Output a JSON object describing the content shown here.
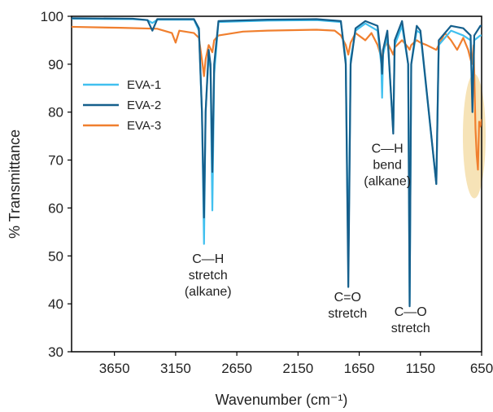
{
  "chart_data": {
    "type": "line",
    "xlabel": "Wavenumber (cm⁻¹)",
    "ylabel": "% Transmittance",
    "xlim": [
      4000,
      650
    ],
    "ylim": [
      30,
      100
    ],
    "x_reversed": true,
    "x_ticks": [
      3650,
      3150,
      2650,
      2150,
      1650,
      1150,
      650
    ],
    "y_ticks": [
      30,
      40,
      50,
      60,
      70,
      80,
      90,
      100
    ],
    "grid": false,
    "legend_position": "top-left",
    "series": [
      {
        "name": "EVA-1",
        "color": "#41c0ef",
        "points": [
          [
            4000,
            99.5
          ],
          [
            3500,
            99.4
          ],
          [
            3380,
            99.2
          ],
          [
            3340,
            98.6
          ],
          [
            3300,
            99.3
          ],
          [
            3000,
            99.3
          ],
          [
            2960,
            97.0
          ],
          [
            2935,
            80.0
          ],
          [
            2918,
            52.5
          ],
          [
            2905,
            80.0
          ],
          [
            2880,
            92.0
          ],
          [
            2865,
            89.0
          ],
          [
            2850,
            59.5
          ],
          [
            2835,
            88.0
          ],
          [
            2800,
            98.8
          ],
          [
            2400,
            99.1
          ],
          [
            2000,
            99.2
          ],
          [
            1800,
            98.8
          ],
          [
            1760,
            91.0
          ],
          [
            1739,
            48.0
          ],
          [
            1720,
            91.0
          ],
          [
            1680,
            97.0
          ],
          [
            1600,
            98.5
          ],
          [
            1500,
            97.0
          ],
          [
            1470,
            90.0
          ],
          [
            1463,
            83.0
          ],
          [
            1455,
            92.0
          ],
          [
            1420,
            96.0
          ],
          [
            1372,
            76.0
          ],
          [
            1360,
            94.0
          ],
          [
            1300,
            98.0
          ],
          [
            1250,
            90.0
          ],
          [
            1238,
            40.0
          ],
          [
            1225,
            90.0
          ],
          [
            1180,
            97.0
          ],
          [
            1150,
            96.5
          ],
          [
            1020,
            65.0
          ],
          [
            1000,
            94.0
          ],
          [
            900,
            97.0
          ],
          [
            800,
            96.0
          ],
          [
            740,
            95.0
          ],
          [
            725,
            82.0
          ],
          [
            710,
            95.0
          ],
          [
            660,
            96.0
          ],
          [
            650,
            96.0
          ]
        ]
      },
      {
        "name": "EVA-2",
        "color": "#155f8c",
        "points": [
          [
            4000,
            99.6
          ],
          [
            3500,
            99.5
          ],
          [
            3380,
            99.2
          ],
          [
            3340,
            97.0
          ],
          [
            3300,
            99.4
          ],
          [
            3000,
            99.4
          ],
          [
            2960,
            97.5
          ],
          [
            2935,
            80.0
          ],
          [
            2918,
            58.0
          ],
          [
            2905,
            80.0
          ],
          [
            2880,
            93.0
          ],
          [
            2865,
            90.0
          ],
          [
            2850,
            67.5
          ],
          [
            2835,
            90.0
          ],
          [
            2800,
            99.0
          ],
          [
            2400,
            99.3
          ],
          [
            2000,
            99.4
          ],
          [
            1800,
            99.0
          ],
          [
            1760,
            90.0
          ],
          [
            1739,
            43.5
          ],
          [
            1720,
            90.0
          ],
          [
            1680,
            97.5
          ],
          [
            1600,
            99.0
          ],
          [
            1500,
            98.0
          ],
          [
            1470,
            91.0
          ],
          [
            1463,
            88.0
          ],
          [
            1455,
            93.0
          ],
          [
            1420,
            97.0
          ],
          [
            1372,
            75.5
          ],
          [
            1360,
            95.0
          ],
          [
            1300,
            99.0
          ],
          [
            1250,
            90.0
          ],
          [
            1238,
            39.5
          ],
          [
            1225,
            90.0
          ],
          [
            1180,
            98.0
          ],
          [
            1150,
            97.0
          ],
          [
            1020,
            65.0
          ],
          [
            1000,
            95.0
          ],
          [
            900,
            98.0
          ],
          [
            800,
            97.5
          ],
          [
            740,
            96.0
          ],
          [
            725,
            80.0
          ],
          [
            710,
            96.0
          ],
          [
            660,
            98.0
          ],
          [
            650,
            98.0
          ]
        ]
      },
      {
        "name": "EVA-3",
        "color": "#f07f2e",
        "points": [
          [
            4000,
            97.8
          ],
          [
            3600,
            97.6
          ],
          [
            3300,
            97.4
          ],
          [
            3180,
            96.5
          ],
          [
            3150,
            94.5
          ],
          [
            3120,
            97.0
          ],
          [
            3000,
            96.5
          ],
          [
            2960,
            95.5
          ],
          [
            2930,
            90.0
          ],
          [
            2918,
            87.5
          ],
          [
            2905,
            91.0
          ],
          [
            2880,
            94.0
          ],
          [
            2850,
            92.5
          ],
          [
            2835,
            95.0
          ],
          [
            2800,
            96.0
          ],
          [
            2600,
            96.8
          ],
          [
            2400,
            97.0
          ],
          [
            2000,
            97.2
          ],
          [
            1850,
            97.0
          ],
          [
            1800,
            96.0
          ],
          [
            1760,
            94.0
          ],
          [
            1739,
            92.0
          ],
          [
            1720,
            94.5
          ],
          [
            1680,
            96.5
          ],
          [
            1600,
            95.0
          ],
          [
            1550,
            96.5
          ],
          [
            1500,
            94.0
          ],
          [
            1470,
            91.5
          ],
          [
            1463,
            91.0
          ],
          [
            1455,
            93.0
          ],
          [
            1420,
            94.5
          ],
          [
            1372,
            92.0
          ],
          [
            1360,
            93.5
          ],
          [
            1300,
            95.0
          ],
          [
            1250,
            93.5
          ],
          [
            1238,
            93.0
          ],
          [
            1225,
            94.0
          ],
          [
            1180,
            95.0
          ],
          [
            1150,
            94.5
          ],
          [
            1100,
            94.0
          ],
          [
            1020,
            93.0
          ],
          [
            1000,
            94.0
          ],
          [
            950,
            96.5
          ],
          [
            900,
            95.0
          ],
          [
            850,
            93.0
          ],
          [
            800,
            95.5
          ],
          [
            760,
            93.0
          ],
          [
            730,
            90.0
          ],
          [
            715,
            94.0
          ],
          [
            700,
            76.5
          ],
          [
            690,
            71.0
          ],
          [
            680,
            68.0
          ],
          [
            670,
            78.0
          ],
          [
            660,
            77.0
          ],
          [
            650,
            78.5
          ]
        ]
      }
    ],
    "annotations": [
      {
        "lines": [
          "C—H",
          "stretch",
          "(alkane)"
        ],
        "x": 2885,
        "y": 48.5
      },
      {
        "lines": [
          "C=O",
          "stretch"
        ],
        "x": 1745,
        "y": 40.5
      },
      {
        "lines": [
          "C—H",
          "bend",
          "(alkane)"
        ],
        "x": 1420,
        "y": 71.5
      },
      {
        "lines": [
          "C—O",
          "stretch"
        ],
        "x": 1230,
        "y": 37.5
      }
    ],
    "highlight": {
      "x": 710,
      "y_top": 88,
      "y_bottom": 62,
      "color": "#f5deaa"
    }
  }
}
